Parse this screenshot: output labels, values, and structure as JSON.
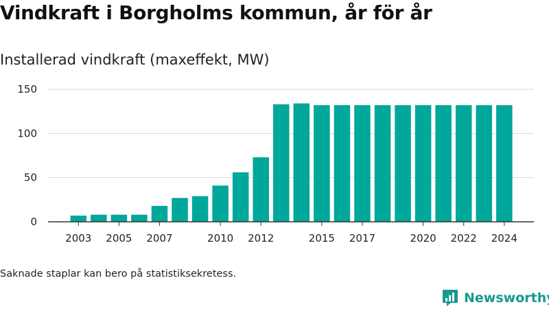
{
  "header": {
    "title": "Vindkraft i Borgholms kommun, år för år",
    "subtitle": "Installerad vindkraft (maxeffekt, MW)"
  },
  "footnote": "Saknade staplar kan bero på statistiksekretess.",
  "brand": {
    "name": "Newsworthy",
    "color": "#159a8f"
  },
  "chart_data": {
    "type": "bar",
    "bar_color": "#00a79b",
    "categories": [
      "2003",
      "2004",
      "2005",
      "2006",
      "2007",
      "2008",
      "2009",
      "2010",
      "2011",
      "2012",
      "2013",
      "2014",
      "2015",
      "2016",
      "2017",
      "2018",
      "2019",
      "2020",
      "2021",
      "2022",
      "2023",
      "2024"
    ],
    "values": [
      7,
      8,
      8,
      8,
      18,
      27,
      29,
      41,
      56,
      73,
      133,
      134,
      132,
      132,
      132,
      132,
      132,
      132,
      132,
      132,
      132,
      132
    ],
    "x_tick_labels": [
      "2003",
      "2005",
      "2007",
      "2010",
      "2012",
      "2015",
      "2017",
      "2020",
      "2022",
      "2024"
    ],
    "y_ticks": [
      0,
      50,
      100,
      150
    ],
    "ylim": [
      0,
      150
    ],
    "grid": "horizontal",
    "xlabel": "",
    "ylabel": ""
  }
}
